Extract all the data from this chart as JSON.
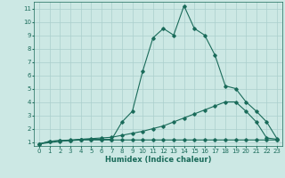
{
  "xlabel": "Humidex (Indice chaleur)",
  "xlim": [
    -0.5,
    23.5
  ],
  "ylim": [
    0.7,
    11.5
  ],
  "x_ticks": [
    0,
    1,
    2,
    3,
    4,
    5,
    6,
    7,
    8,
    9,
    10,
    11,
    12,
    13,
    14,
    15,
    16,
    17,
    18,
    19,
    20,
    21,
    22,
    23
  ],
  "y_ticks": [
    1,
    2,
    3,
    4,
    5,
    6,
    7,
    8,
    9,
    10,
    11
  ],
  "background_color": "#cce8e4",
  "grid_color": "#aacfcc",
  "line_color": "#1a6b5a",
  "line1_x": [
    0,
    1,
    2,
    3,
    4,
    5,
    6,
    7,
    8,
    9,
    10,
    11,
    12,
    13,
    14,
    15,
    16,
    17,
    18,
    19,
    20,
    21,
    22,
    23
  ],
  "line1_y": [
    0.85,
    1.05,
    1.1,
    1.1,
    1.15,
    1.15,
    1.15,
    1.15,
    1.15,
    1.15,
    1.15,
    1.15,
    1.15,
    1.15,
    1.15,
    1.15,
    1.15,
    1.15,
    1.15,
    1.15,
    1.15,
    1.15,
    1.15,
    1.15
  ],
  "line2_x": [
    0,
    1,
    2,
    3,
    4,
    5,
    6,
    7,
    8,
    9,
    10,
    11,
    12,
    13,
    14,
    15,
    16,
    17,
    18,
    19,
    20,
    21,
    22,
    23
  ],
  "line2_y": [
    0.85,
    1.05,
    1.1,
    1.15,
    1.2,
    1.25,
    1.3,
    1.35,
    1.5,
    1.65,
    1.8,
    2.0,
    2.2,
    2.5,
    2.8,
    3.1,
    3.4,
    3.7,
    4.0,
    4.0,
    3.3,
    2.5,
    1.3,
    1.2
  ],
  "line3_x": [
    0,
    2,
    3,
    4,
    5,
    6,
    7,
    8,
    9,
    10,
    11,
    12,
    13,
    14,
    15,
    16,
    17,
    18,
    19,
    20,
    21,
    22,
    23
  ],
  "line3_y": [
    0.85,
    1.05,
    1.1,
    1.2,
    1.2,
    1.2,
    1.2,
    2.5,
    3.3,
    6.3,
    8.8,
    9.5,
    9.0,
    11.2,
    9.5,
    9.0,
    7.5,
    5.2,
    5.0,
    4.0,
    3.3,
    2.5,
    1.25
  ],
  "marker": "D",
  "markersize": 1.8,
  "linewidth": 0.8
}
